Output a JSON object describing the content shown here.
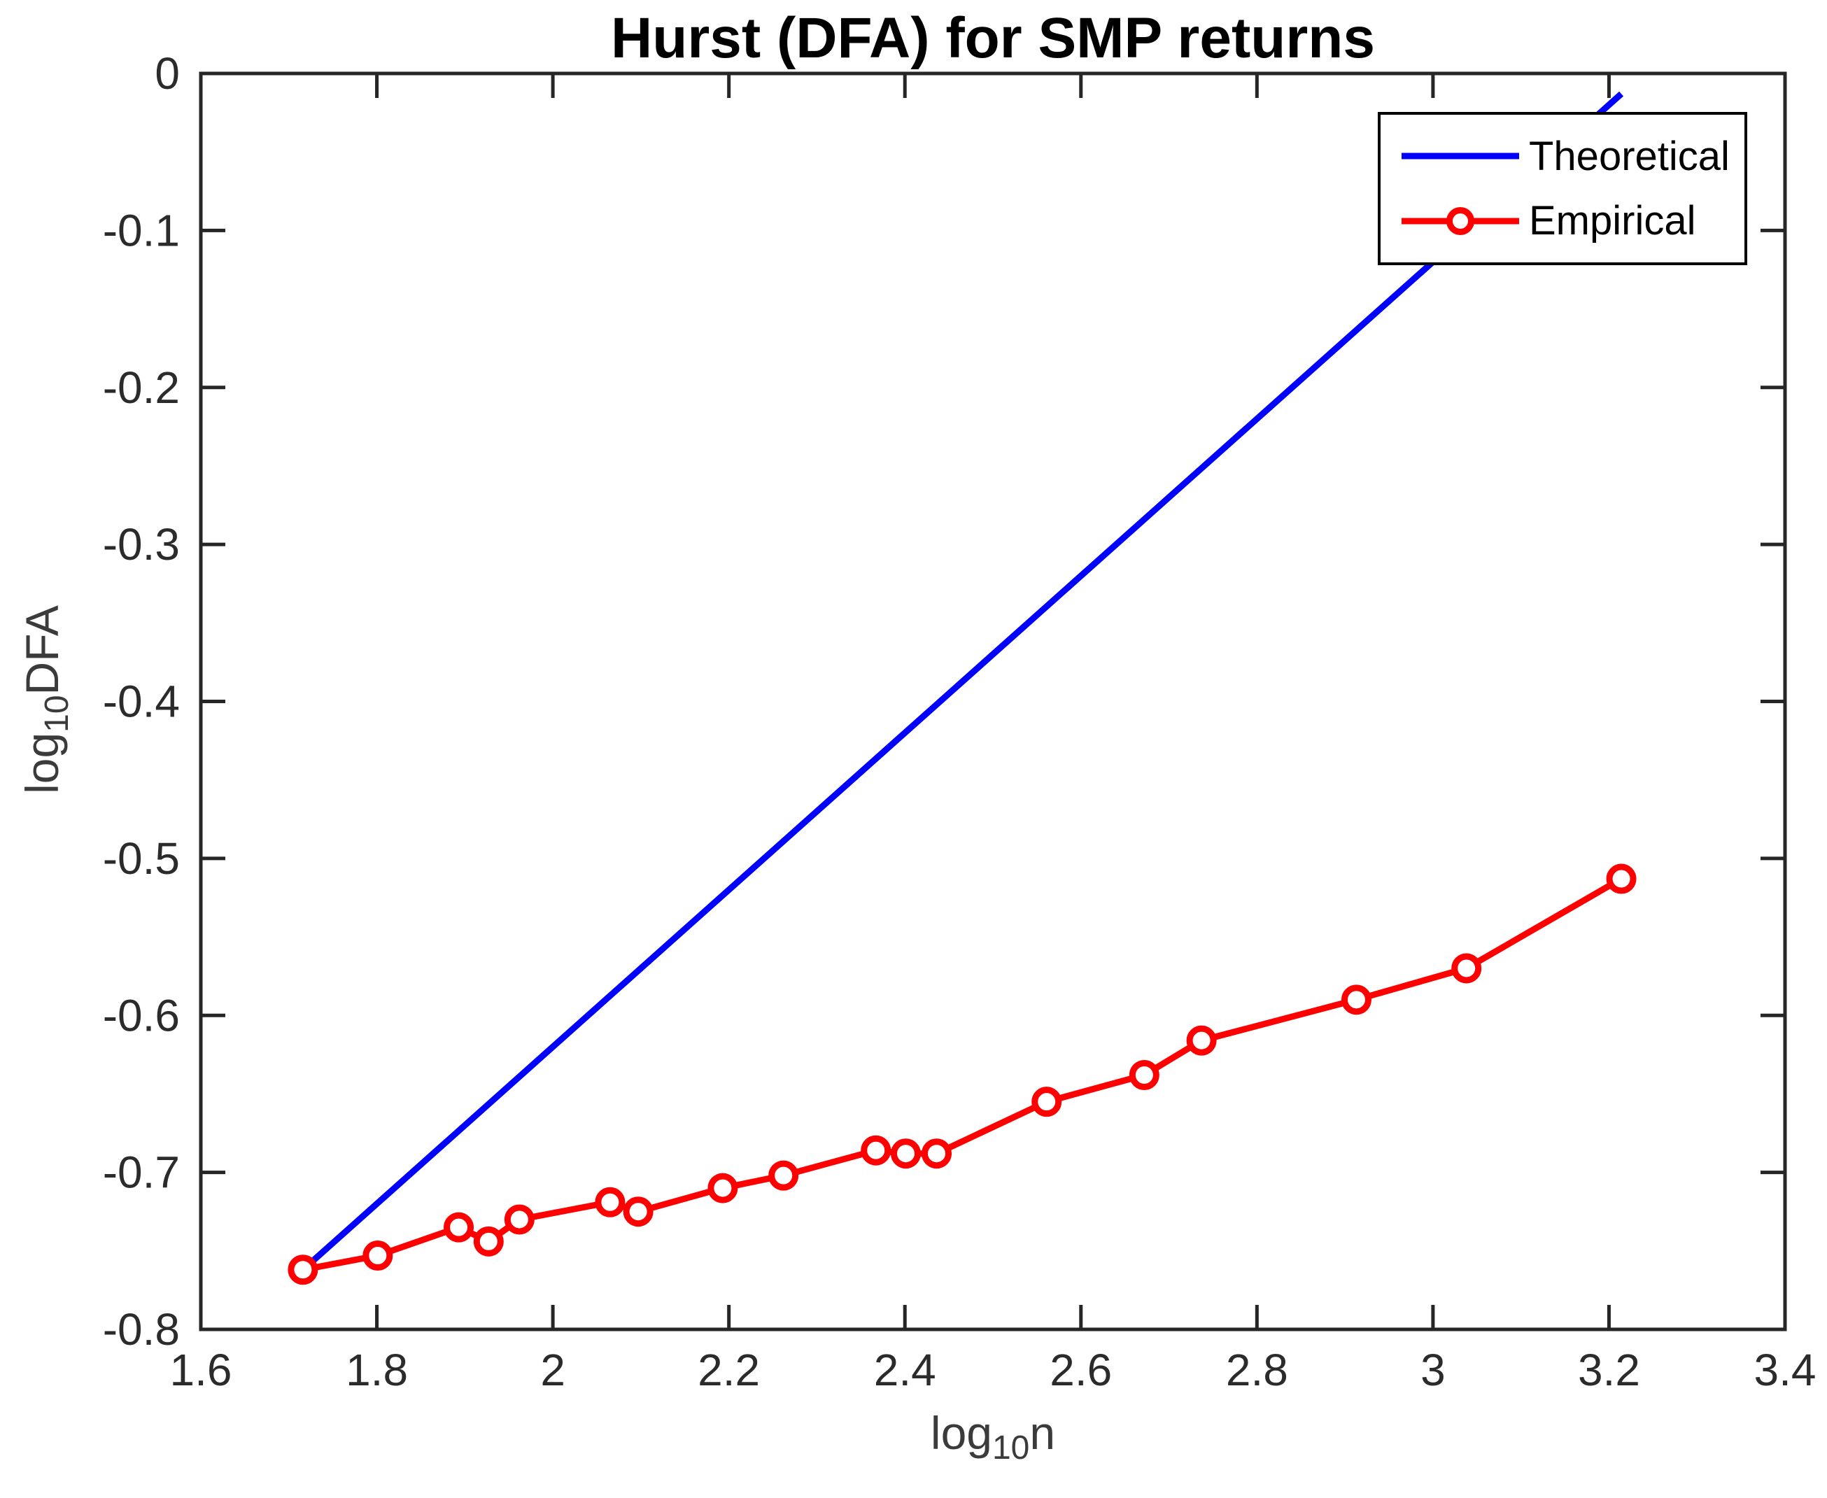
{
  "figure": {
    "title": "Hurst (DFA) for SMP returns"
  },
  "colors": {
    "axis": "#262626",
    "tick_label": "#2b2b2b",
    "title": "#000000",
    "background": "#ffffff",
    "legend_border": "#000000",
    "theoretical": "#0000ff",
    "empirical": "#ff0000"
  },
  "chart_data": {
    "type": "line",
    "title": "Hurst (DFA) for SMP returns",
    "xlabel": "log_10 n",
    "ylabel": "log_10 DFA",
    "xlabel_parts": {
      "base": "log",
      "sub": "10",
      "rest": "n"
    },
    "ylabel_parts": {
      "base": "log",
      "sub": "10",
      "rest": "DFA"
    },
    "xlim": [
      1.6,
      3.4
    ],
    "ylim": [
      -0.8,
      0
    ],
    "grid": false,
    "legend_position": "northeast-inside",
    "xtick_values": [
      1.6,
      1.8,
      2.0,
      2.2,
      2.4,
      2.6,
      2.8,
      3.0,
      3.2,
      3.4
    ],
    "xtick_labels": [
      "1.6",
      "1.8",
      "2",
      "2.2",
      "2.4",
      "2.6",
      "2.8",
      "3",
      "3.2",
      "3.4"
    ],
    "ytick_values": [
      0,
      -0.1,
      -0.2,
      -0.3,
      -0.4,
      -0.5,
      -0.6,
      -0.7,
      -0.8
    ],
    "ytick_labels": [
      "0",
      "-0.1",
      "-0.2",
      "-0.3",
      "-0.4",
      "-0.5",
      "-0.6",
      "-0.7",
      "-0.8"
    ],
    "series": [
      {
        "name": "Theoretical",
        "color": "#0000ff",
        "marker": "none",
        "line_width": 9,
        "x": [
          1.716,
          3.214
        ],
        "y": [
          -0.762,
          -0.013
        ]
      },
      {
        "name": "Empirical",
        "color": "#ff0000",
        "marker": "circle",
        "line_width": 9,
        "x": [
          1.716,
          1.801,
          1.893,
          1.927,
          1.962,
          2.065,
          2.097,
          2.193,
          2.262,
          2.367,
          2.401,
          2.436,
          2.561,
          2.672,
          2.737,
          2.913,
          3.038,
          3.214
        ],
        "y": [
          -0.762,
          -0.753,
          -0.735,
          -0.744,
          -0.73,
          -0.719,
          -0.725,
          -0.71,
          -0.702,
          -0.686,
          -0.688,
          -0.688,
          -0.655,
          -0.638,
          -0.616,
          -0.59,
          -0.57,
          -0.513
        ]
      }
    ]
  }
}
